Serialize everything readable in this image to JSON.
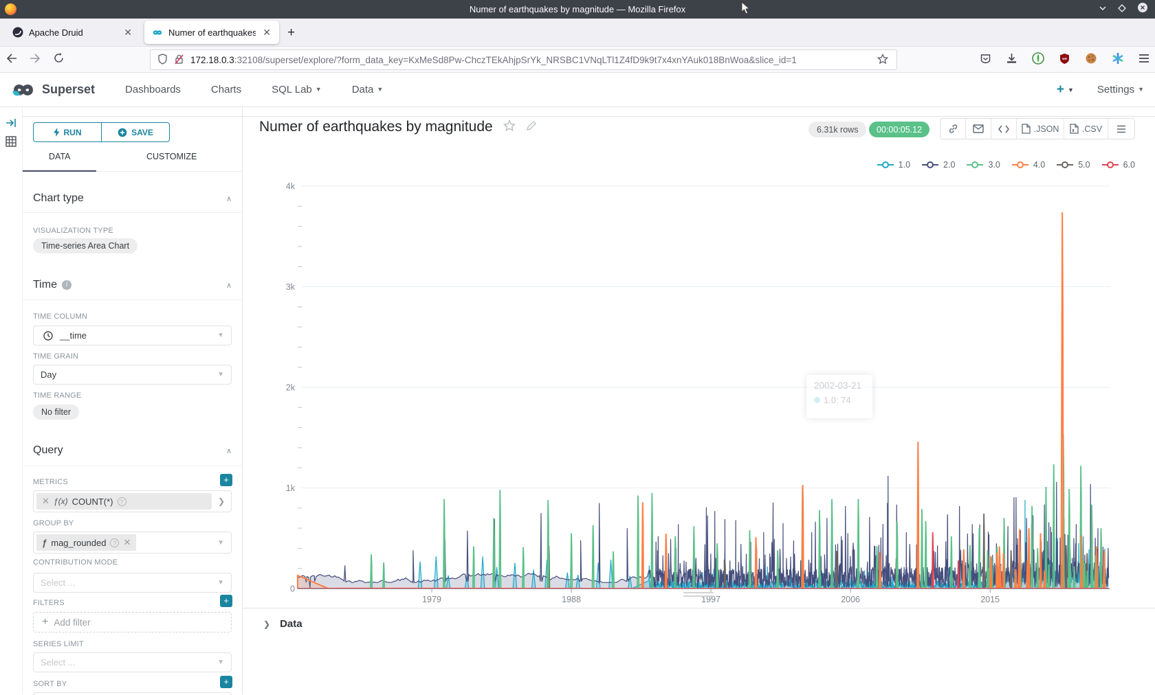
{
  "browser": {
    "window_title": "Numer of earthquakes by magnitude — Mozilla Firefox",
    "tabs": [
      {
        "label": "Apache Druid"
      },
      {
        "label": "Numer of earthquakes by "
      }
    ],
    "new_tab_label": "+",
    "url_host": "172.18.0.3",
    "url_rest": ":32108/superset/explore/?form_data_key=KxMeSd8Pw-ChczTEkAhjpSrYk_NRSBC1VNqLTl1Z4fD9k9t7x4xnYAuk018BnWoa&slice_id=1"
  },
  "navbar": {
    "brand": "Superset",
    "items": [
      "Dashboards",
      "Charts",
      "SQL Lab",
      "Data"
    ],
    "plus_label": "+",
    "settings_label": "Settings"
  },
  "sidebar": {
    "run_label": "RUN",
    "save_label": "SAVE",
    "tab_data": "DATA",
    "tab_customize": "CUSTOMIZE",
    "chart_type_title": "Chart type",
    "viz_type_label": "VISUALIZATION TYPE",
    "viz_type_value": "Time-series Area Chart",
    "time_title": "Time",
    "time_column_label": "TIME COLUMN",
    "time_column_value": "__time",
    "time_grain_label": "TIME GRAIN",
    "time_grain_value": "Day",
    "time_range_label": "TIME RANGE",
    "time_range_value": "No filter",
    "query_title": "Query",
    "metrics_label": "METRICS",
    "metric_fn": "f(x)",
    "metric_value": "COUNT(*)",
    "groupby_label": "GROUP BY",
    "groupby_fn": "f",
    "groupby_value": "mag_rounded",
    "contribution_label": "CONTRIBUTION MODE",
    "contribution_placeholder": "Select ...",
    "filters_label": "FILTERS",
    "add_filter_label": "Add filter",
    "series_limit_label": "SERIES LIMIT",
    "series_limit_placeholder": "Select ...",
    "sort_by_label": "SORT BY"
  },
  "chart_header": {
    "title": "Numer of earthquakes by magnitude",
    "rows_badge": "6.31k rows",
    "timer_badge": "00:00:05.12",
    "export_json": ".JSON",
    "export_csv": ".CSV"
  },
  "tooltip": {
    "date": "2002-03-21",
    "series": "1.0",
    "value": "1.0: 74"
  },
  "data_panel_title": "Data",
  "chart_data": {
    "type": "area",
    "title": "Numer of earthquakes by magnitude",
    "x_axis": {
      "min": 1970.35,
      "max": 2022.65,
      "label_years": [
        1979,
        1988,
        1997,
        2006,
        2015
      ]
    },
    "y_axis": {
      "ticks": [
        "0",
        "1k",
        "2k",
        "3k",
        "4k"
      ],
      "max": 4000,
      "minor_per_major": 4
    },
    "series": [
      {
        "name": "1.0",
        "color": "#1FA8C9"
      },
      {
        "name": "2.0",
        "color": "#454E7C"
      },
      {
        "name": "3.0",
        "color": "#5AC189"
      },
      {
        "name": "4.0",
        "color": "#FF7F44"
      },
      {
        "name": "5.0",
        "color": "#6b6661"
      },
      {
        "name": "6.0",
        "color": "#E04355"
      }
    ],
    "spikes": {
      "1.0": [
        [
          2017.25,
          880
        ],
        [
          2019.35,
          500
        ],
        [
          2020.7,
          450
        ],
        [
          2021.5,
          420
        ]
      ],
      "2.0": [
        [
          1973.4,
          230
        ],
        [
          1977.8,
          380
        ],
        [
          1979.85,
          490
        ],
        [
          1981.3,
          575
        ],
        [
          1983.05,
          690
        ],
        [
          1986.05,
          750
        ],
        [
          1988.6,
          480
        ],
        [
          1989.8,
          850
        ],
        [
          1991.6,
          600
        ],
        [
          1993.6,
          520
        ],
        [
          1994.9,
          640
        ],
        [
          1997.25,
          770
        ],
        [
          1997.9,
          690
        ],
        [
          1998.6,
          680
        ],
        [
          2000.4,
          560
        ],
        [
          2001.65,
          650
        ],
        [
          2003.5,
          560
        ],
        [
          2005.4,
          520
        ],
        [
          2008.42,
          1120
        ],
        [
          2009.6,
          560
        ],
        [
          2012.25,
          700
        ],
        [
          2013.85,
          640
        ],
        [
          2014.88,
          565
        ],
        [
          2016.15,
          620
        ],
        [
          2017.35,
          700
        ],
        [
          2018.95,
          560
        ],
        [
          2020.55,
          640
        ],
        [
          2021.95,
          600
        ]
      ],
      "3.0": [
        [
          1975.1,
          340
        ],
        [
          1975.9,
          260
        ],
        [
          1979.8,
          890
        ],
        [
          1981.7,
          420
        ],
        [
          1983.0,
          700
        ],
        [
          1983.4,
          980
        ],
        [
          1984.9,
          410
        ],
        [
          1986.5,
          880
        ],
        [
          1988.0,
          550
        ],
        [
          1989.4,
          630
        ],
        [
          1990.7,
          370
        ],
        [
          1992.3,
          925
        ],
        [
          1993.2,
          950
        ],
        [
          1994.7,
          520
        ],
        [
          1995.9,
          620
        ],
        [
          1997.4,
          450
        ],
        [
          1999.5,
          580
        ],
        [
          2001.3,
          380
        ],
        [
          2002.9,
          1000
        ],
        [
          2004.0,
          780
        ],
        [
          2004.8,
          890
        ],
        [
          2006.5,
          890
        ],
        [
          2007.7,
          420
        ],
        [
          2009.0,
          670
        ],
        [
          2010.6,
          790
        ],
        [
          2010.85,
          670
        ],
        [
          2012.5,
          520
        ],
        [
          2013.7,
          430
        ],
        [
          2014.3,
          600
        ],
        [
          2015.9,
          700
        ],
        [
          2016.9,
          560
        ],
        [
          2017.7,
          820
        ],
        [
          2018.6,
          1010
        ],
        [
          2019.1,
          1235
        ],
        [
          2019.72,
          1540
        ],
        [
          2020.1,
          990
        ],
        [
          2020.85,
          1220
        ],
        [
          2021.55,
          835
        ],
        [
          2022.15,
          600
        ]
      ],
      "4.0": [
        [
          1992.6,
          857
        ],
        [
          1994.1,
          545
        ],
        [
          1999.9,
          510
        ],
        [
          2002.92,
          1030
        ],
        [
          2007.9,
          360
        ],
        [
          2010.35,
          1460
        ],
        [
          2013.3,
          390
        ],
        [
          2015.6,
          420
        ],
        [
          2016.9,
          590
        ],
        [
          2017.5,
          600
        ],
        [
          2018.25,
          550
        ],
        [
          2019.65,
          3740
        ],
        [
          2020.9,
          530
        ],
        [
          2021.85,
          420
        ],
        [
          2022.35,
          380
        ]
      ],
      "5.0": [
        [
          1986.55,
          430
        ],
        [
          1997.9,
          280
        ],
        [
          2005.1,
          375
        ],
        [
          2008.95,
          300
        ],
        [
          2014.6,
          745
        ],
        [
          2016.35,
          380
        ],
        [
          2019.9,
          430
        ],
        [
          2021.25,
          350
        ]
      ],
      "6.0": [
        [
          2011.3,
          560
        ],
        [
          2012.95,
          280
        ]
      ]
    },
    "seed": 42
  }
}
